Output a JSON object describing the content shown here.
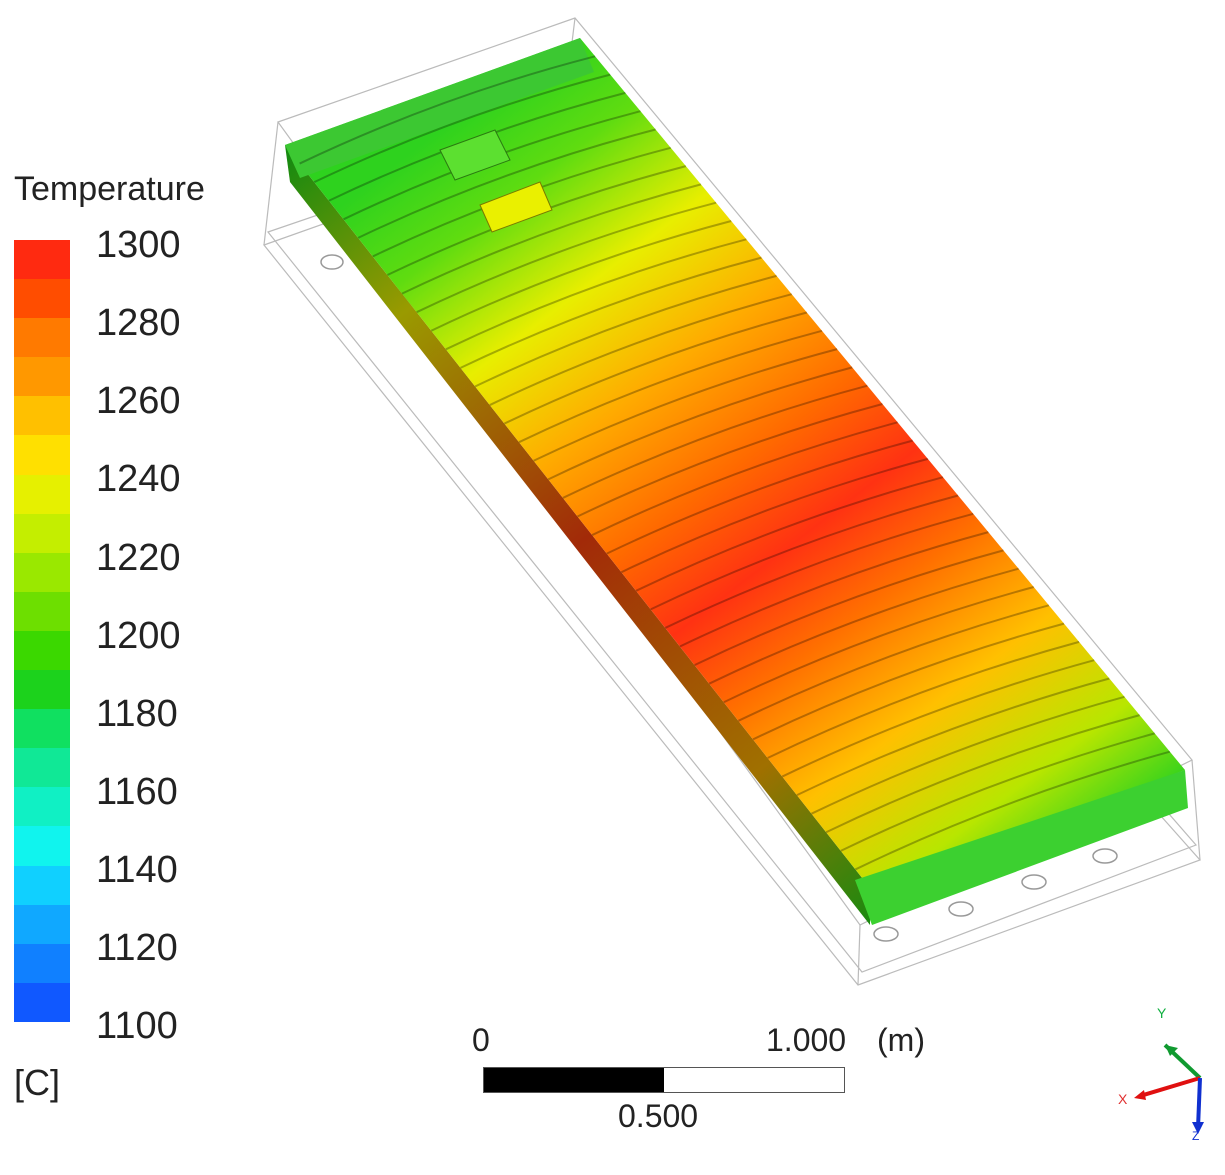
{
  "legend": {
    "title": "Temperature",
    "unit": "[C]",
    "ticks": [
      "1300",
      "1280",
      "1260",
      "1240",
      "1220",
      "1200",
      "1180",
      "1160",
      "1140",
      "1120",
      "1100"
    ],
    "colors": [
      "#ff2a10",
      "#ff4d00",
      "#ff7a00",
      "#ff9800",
      "#ffc000",
      "#ffe000",
      "#e6f000",
      "#c4ee00",
      "#9ae800",
      "#6ddf00",
      "#3bd800",
      "#1cd21c",
      "#10e060",
      "#10e896",
      "#10f0c4",
      "#10f4ee",
      "#10d0ff",
      "#10a8ff",
      "#1080ff",
      "#1058ff"
    ]
  },
  "scale": {
    "start_label": "0",
    "end_label": "1.000",
    "unit_label": "(m)",
    "mid_label": "0.500"
  },
  "axes": {
    "y": "Y",
    "x": "X",
    "z": "Z"
  }
}
